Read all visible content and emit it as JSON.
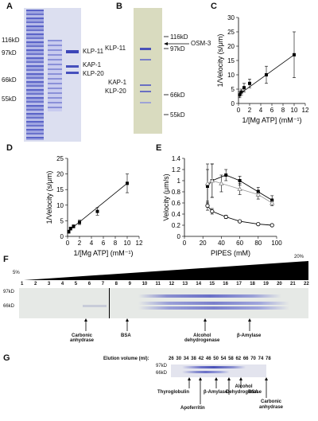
{
  "panels": {
    "A": {
      "label": "A",
      "markers": [
        "116kD",
        "97kD",
        "66kD",
        "55kD"
      ],
      "bands": [
        "KLP-11",
        "KAP-1",
        "KLP-20"
      ]
    },
    "B": {
      "label": "B",
      "markers": [
        "116kD",
        "97kD",
        "66kD",
        "55kD"
      ],
      "left_bands": [
        "KLP-11",
        "KAP-1",
        "KLP-20"
      ],
      "arrow_label": "OSM-3"
    },
    "F": {
      "label": "F",
      "gradient_start": "5%",
      "gradient_end": "20%",
      "lanes": [
        "1",
        "2",
        "3",
        "4",
        "5",
        "6",
        "7",
        "8",
        "9",
        "10",
        "11",
        "12",
        "13",
        "14",
        "15",
        "16",
        "17",
        "18",
        "19",
        "20",
        "21",
        "22"
      ],
      "markers": [
        "97kD",
        "66kD"
      ],
      "standards": [
        "Carbonic\nanhydrase",
        "BSA",
        "Alcohol\ndehydrogenase",
        "β-Amylase"
      ]
    },
    "G": {
      "label": "G",
      "elution_title": "Elution volume (ml):",
      "volumes": [
        "26",
        "30",
        "34",
        "38",
        "42",
        "46",
        "50",
        "54",
        "58",
        "62",
        "66",
        "70",
        "74",
        "78"
      ],
      "markers": [
        "97kD",
        "66kD"
      ],
      "standards": [
        "Thyroglobulin",
        "Apoferritin",
        "β-Amylase",
        "Alcohol\nDehydrogenase",
        "BSA",
        "Carbonic\nanhydrase"
      ]
    }
  },
  "chart_data": [
    {
      "panel": "C",
      "label": "C",
      "type": "scatter",
      "xlabel": "1/[Mg ATP] (mM⁻¹)",
      "ylabel": "1/Velocity (s/μm)",
      "xlim": [
        0,
        12
      ],
      "ylim": [
        0,
        30
      ],
      "xticks": [
        "0",
        "2",
        "4",
        "6",
        "8",
        "10",
        "12"
      ],
      "yticks": [
        "0",
        "5",
        "10",
        "15",
        "20",
        "25",
        "30"
      ],
      "x": [
        0.2,
        0.5,
        1,
        2,
        5,
        10
      ],
      "y": [
        3,
        4,
        5.5,
        7,
        10,
        17
      ],
      "err": [
        1,
        1,
        1.5,
        1.5,
        3,
        8
      ],
      "fit": [
        [
          0,
          3
        ],
        [
          10,
          17
        ]
      ]
    },
    {
      "panel": "D",
      "label": "D",
      "type": "scatter",
      "xlabel": "1/[Mg ATP] (mM⁻¹)",
      "ylabel": "1/Velocity (s/μm)",
      "xlim": [
        0,
        12
      ],
      "ylim": [
        0,
        25
      ],
      "xticks": [
        "0",
        "2",
        "4",
        "6",
        "8",
        "10",
        "12"
      ],
      "yticks": [
        "0",
        "5",
        "10",
        "15",
        "20",
        "25"
      ],
      "x": [
        0.2,
        0.5,
        1,
        2,
        5,
        10
      ],
      "y": [
        1.5,
        2.5,
        3.2,
        4.5,
        8,
        17
      ],
      "err": [
        0.5,
        0.5,
        0.5,
        0.7,
        1.2,
        3
      ],
      "fit": [
        [
          0,
          1.5
        ],
        [
          10,
          17
        ]
      ]
    },
    {
      "panel": "E",
      "label": "E",
      "type": "line",
      "xlabel": "PIPES   (mM)",
      "ylabel": "Velocity (μm/s)",
      "xlim": [
        0,
        100
      ],
      "ylim": [
        0,
        1.4
      ],
      "xticks": [
        "0",
        "20",
        "40",
        "60",
        "80",
        "100"
      ],
      "yticks": [
        "0",
        "0.2",
        "0.4",
        "0.6",
        "0.8",
        "1",
        "1.2",
        "1.4"
      ],
      "series": [
        {
          "x": [
            25,
            30,
            45,
            60,
            80,
            95
          ],
          "y": [
            0.9,
            1.0,
            1.1,
            1.0,
            0.8,
            0.65
          ],
          "err": [
            0.3,
            0.3,
            0.1,
            0.08,
            0.08,
            0.08
          ],
          "marker": "filled-square"
        },
        {
          "x": [
            25,
            30,
            40,
            60,
            80,
            95
          ],
          "y": [
            0.95,
            1.0,
            0.95,
            0.85,
            0.75,
            0.6
          ],
          "err": [
            0.35,
            0.3,
            0.15,
            0.1,
            0.08,
            0.05
          ],
          "marker": "open-triangle"
        },
        {
          "x": [
            25,
            30,
            45,
            60,
            80,
            95
          ],
          "y": [
            0.55,
            0.45,
            0.35,
            0.27,
            0.22,
            0.2
          ],
          "err": [
            0.08,
            0.05,
            0.03,
            0.02,
            0.02,
            0.02
          ],
          "marker": "open-circle"
        }
      ]
    }
  ]
}
